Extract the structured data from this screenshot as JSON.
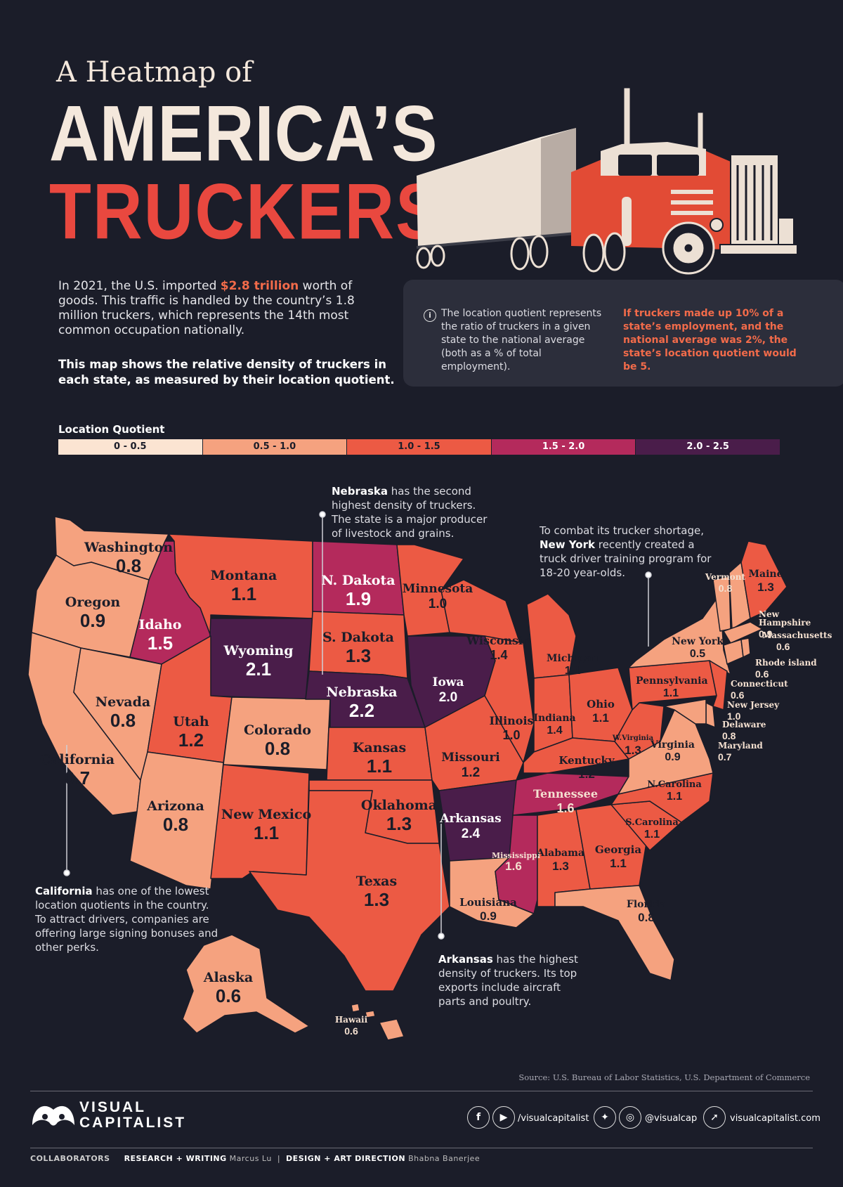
{
  "header": {
    "title_line1": "A Heatmap of",
    "title_line2": "AMERICA’S",
    "title_line3": "TRUCKERS"
  },
  "intro": {
    "part1": "In 2021, the U.S. imported ",
    "highlight": "$2.8 trillion",
    "part2": " worth of goods. This traffic is handled by the country’s 1.8 million truckers, which represents the 14th most common occupation nationally.",
    "bold": "This map shows the relative density of truckers in each state, as measured by their location quotient."
  },
  "info": {
    "icon": "info-icon",
    "definition": "The location quotient represents the ratio of truckers in a given state to the national average (both as a % of total employment).",
    "example": "If truckers made up 10% of a state’s employment, and the national average was 2%, the state’s location quotient would be 5."
  },
  "legend": {
    "title": "Location Quotient",
    "bins": [
      {
        "label": "0 - 0.5",
        "color": "#fbe4d2",
        "text_color": "#1b1d29"
      },
      {
        "label": "0.5 - 1.0",
        "color": "#f5a27f",
        "text_color": "#1b1d29"
      },
      {
        "label": "1.0 - 1.5",
        "color": "#ec5a44",
        "text_color": "#1b1d29"
      },
      {
        "label": "1.5 - 2.0",
        "color": "#b42a5c",
        "text_color": "#ffffff"
      },
      {
        "label": "2.0 - 2.5",
        "color": "#4a1d4a",
        "text_color": "#ffffff"
      }
    ]
  },
  "states": {
    "washington": {
      "name": "Washington",
      "value": "0.8"
    },
    "oregon": {
      "name": "Oregon",
      "value": "0.9"
    },
    "california": {
      "name": "California",
      "value": "0.7"
    },
    "nevada": {
      "name": "Nevada",
      "value": "0.8"
    },
    "idaho": {
      "name": "Idaho",
      "value": "1.5"
    },
    "montana": {
      "name": "Montana",
      "value": "1.1"
    },
    "wyoming": {
      "name": "Wyoming",
      "value": "2.1"
    },
    "utah": {
      "name": "Utah",
      "value": "1.2"
    },
    "colorado": {
      "name": "Colorado",
      "value": "0.8"
    },
    "arizona": {
      "name": "Arizona",
      "value": "0.8"
    },
    "new_mexico": {
      "name": "New Mexico",
      "value": "1.1"
    },
    "north_dakota": {
      "name": "N. Dakota",
      "value": "1.9"
    },
    "south_dakota": {
      "name": "S. Dakota",
      "value": "1.3"
    },
    "nebraska": {
      "name": "Nebraska",
      "value": "2.2"
    },
    "kansas": {
      "name": "Kansas",
      "value": "1.1"
    },
    "oklahoma": {
      "name": "Oklahoma",
      "value": "1.3"
    },
    "texas": {
      "name": "Texas",
      "value": "1.3"
    },
    "minnesota": {
      "name": "Minnesota",
      "value": "1.0"
    },
    "iowa": {
      "name": "Iowa",
      "value": "2.0"
    },
    "missouri": {
      "name": "Missouri",
      "value": "1.2"
    },
    "arkansas": {
      "name": "Arkansas",
      "value": "2.4"
    },
    "louisiana": {
      "name": "Louisiana",
      "value": "0.9"
    },
    "wisconsin": {
      "name": "Wisconsin",
      "value": "1.4"
    },
    "illinois": {
      "name": "Illinois",
      "value": "1.0"
    },
    "michigan": {
      "name": "Michigan",
      "value": "1.1"
    },
    "indiana": {
      "name": "Indiana",
      "value": "1.4"
    },
    "ohio": {
      "name": "Ohio",
      "value": "1.1"
    },
    "kentucky": {
      "name": "Kentucky",
      "value": "1.2"
    },
    "tennessee": {
      "name": "Tennessee",
      "value": "1.6"
    },
    "mississippi": {
      "name": "Mississippi",
      "value": "1.6"
    },
    "alabama": {
      "name": "Alabama",
      "value": "1.3"
    },
    "georgia": {
      "name": "Georgia",
      "value": "1.1"
    },
    "florida": {
      "name": "Florida",
      "value": "0.8"
    },
    "south_carolina": {
      "name": "S.Carolina",
      "value": "1.1"
    },
    "north_carolina": {
      "name": "N.Carolina",
      "value": "1.1"
    },
    "virginia": {
      "name": "Virginia",
      "value": "0.9"
    },
    "west_virginia": {
      "name": "W.Virginia",
      "value": "1.3"
    },
    "pennsylvania": {
      "name": "Pennsylvania",
      "value": "1.1"
    },
    "new_york": {
      "name": "New York",
      "value": "0.5"
    },
    "vermont": {
      "name": "Vermont",
      "value": "0.8"
    },
    "maine": {
      "name": "Maine",
      "value": "1.3"
    },
    "new_hampshire": {
      "name": "New Hampshire",
      "value": "0.9"
    },
    "massachusetts": {
      "name": "Massachusetts",
      "value": "0.6"
    },
    "rhode_island": {
      "name": "Rhode island",
      "value": "0.6"
    },
    "connecticut": {
      "name": "Connecticut",
      "value": "0.6"
    },
    "new_jersey": {
      "name": "New Jersey",
      "value": "1.0"
    },
    "delaware": {
      "name": "Delaware",
      "value": "0.8"
    },
    "maryland": {
      "name": "Maryland",
      "value": "0.7"
    },
    "alaska": {
      "name": "Alaska",
      "value": "0.6"
    },
    "hawaii": {
      "name": "Hawaii",
      "value": "0.6"
    }
  },
  "annotations": {
    "nebraska": {
      "bold": "Nebraska",
      "text": " has the second highest density of truckers. The state is a major producer of livestock and grains."
    },
    "new_york": {
      "pre": "To combat its trucker shortage, ",
      "bold": "New York",
      "text": " recently created a truck driver training program for 18-20 year-olds."
    },
    "california": {
      "bold": "California",
      "text": " has one of the lowest location quotients in the country. To attract drivers, companies are offering large signing bonuses and other perks."
    },
    "arkansas": {
      "bold": "Arkansas",
      "text": " has the highest density of truckers. Its top exports include aircraft parts and poultry."
    }
  },
  "footer": {
    "source": "Source: U.S. Bureau of Labor Statistics, U.S. Department of Commerce",
    "brand_line1": "VISUAL",
    "brand_line2": "CAPITALIST",
    "handle1": "/visualcapitalist",
    "handle2": "@visualcap",
    "website": "visualcapitalist.com",
    "collaborators_label": "COLLABORATORS",
    "research_label": "RESEARCH + WRITING",
    "research_name": "Marcus Lu",
    "design_label": "DESIGN + ART DIRECTION",
    "design_name": "Bhabna Banerjee"
  }
}
